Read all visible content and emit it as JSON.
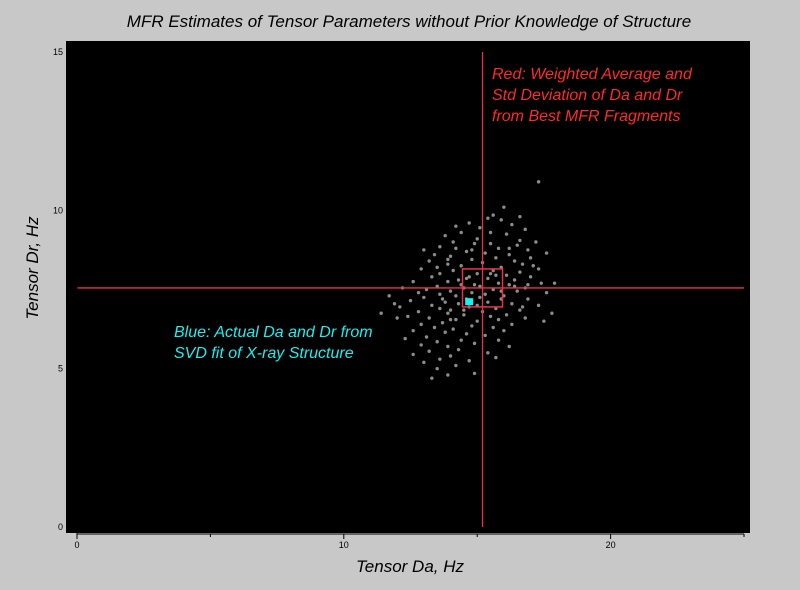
{
  "chart_data": {
    "type": "scatter",
    "title": "MFR Estimates of Tensor Parameters without Prior Knowledge of Structure",
    "xlabel": "Tensor Da, Hz",
    "ylabel": "Tensor Dr, Hz",
    "xlim": [
      0,
      25
    ],
    "ylim": [
      0,
      15
    ],
    "x_ticks": [
      0,
      10,
      20
    ],
    "y_ticks": [
      0,
      5,
      10,
      15
    ],
    "colors": {
      "background": "#c8c8c8",
      "plot_background": "#000000",
      "points": "#8c8c8c",
      "average": "#e8324a",
      "actual": "#19f0f0"
    },
    "annotations": {
      "red": [
        "Red: Weighted Average and",
        "Std Deviation of Da and Dr",
        "from Best MFR Fragments"
      ],
      "cyan": [
        "Blue: Actual Da and Dr from",
        "SVD fit of X-ray Structure"
      ]
    },
    "weighted_average": {
      "x": 15.2,
      "y": 7.55,
      "x_std": 0.75,
      "y_std": 0.6
    },
    "actual": {
      "x": 14.7,
      "y": 7.1
    },
    "series": [
      {
        "points": [
          [
            17.3,
            10.9
          ],
          [
            16.0,
            10.1
          ],
          [
            15.6,
            9.85
          ],
          [
            16.6,
            9.8
          ],
          [
            15.9,
            9.7
          ],
          [
            14.7,
            9.6
          ],
          [
            16.3,
            9.55
          ],
          [
            15.1,
            9.45
          ],
          [
            16.8,
            9.4
          ],
          [
            14.4,
            9.3
          ],
          [
            15.5,
            9.3
          ],
          [
            16.1,
            9.25
          ],
          [
            13.8,
            9.2
          ],
          [
            15.0,
            9.1
          ],
          [
            17.2,
            9.0
          ],
          [
            14.9,
            8.95
          ],
          [
            16.5,
            8.9
          ],
          [
            13.6,
            8.85
          ],
          [
            14.2,
            8.8
          ],
          [
            15.8,
            8.8
          ],
          [
            16.9,
            8.75
          ],
          [
            14.6,
            8.7
          ],
          [
            15.3,
            8.65
          ],
          [
            13.4,
            8.6
          ],
          [
            16.2,
            8.6
          ],
          [
            14.0,
            8.55
          ],
          [
            15.7,
            8.5
          ],
          [
            17.0,
            8.5
          ],
          [
            14.8,
            8.45
          ],
          [
            13.2,
            8.4
          ],
          [
            16.4,
            8.4
          ],
          [
            15.2,
            8.35
          ],
          [
            13.9,
            8.3
          ],
          [
            16.7,
            8.3
          ],
          [
            14.4,
            8.25
          ],
          [
            15.9,
            8.2
          ],
          [
            12.9,
            8.15
          ],
          [
            17.3,
            8.15
          ],
          [
            14.1,
            8.1
          ],
          [
            15.6,
            8.1
          ],
          [
            16.6,
            8.05
          ],
          [
            13.6,
            8.0
          ],
          [
            15.0,
            8.0
          ],
          [
            16.1,
            7.95
          ],
          [
            14.7,
            7.9
          ],
          [
            13.3,
            7.9
          ],
          [
            17.0,
            7.9
          ],
          [
            15.4,
            7.85
          ],
          [
            14.3,
            7.8
          ],
          [
            16.4,
            7.8
          ],
          [
            12.6,
            7.75
          ],
          [
            13.9,
            7.75
          ],
          [
            15.8,
            7.7
          ],
          [
            17.4,
            7.7
          ],
          [
            14.9,
            7.65
          ],
          [
            16.2,
            7.65
          ],
          [
            13.5,
            7.6
          ],
          [
            15.1,
            7.6
          ],
          [
            12.2,
            7.55
          ],
          [
            14.5,
            7.55
          ],
          [
            16.8,
            7.55
          ],
          [
            13.1,
            7.5
          ],
          [
            15.6,
            7.5
          ],
          [
            14.0,
            7.45
          ],
          [
            16.5,
            7.45
          ],
          [
            12.8,
            7.4
          ],
          [
            14.8,
            7.4
          ],
          [
            17.6,
            7.4
          ],
          [
            13.6,
            7.35
          ],
          [
            15.3,
            7.35
          ],
          [
            16.0,
            7.3
          ],
          [
            11.7,
            7.3
          ],
          [
            14.2,
            7.3
          ],
          [
            13.0,
            7.25
          ],
          [
            15.9,
            7.2
          ],
          [
            14.6,
            7.2
          ],
          [
            16.9,
            7.2
          ],
          [
            12.5,
            7.15
          ],
          [
            13.8,
            7.1
          ],
          [
            15.4,
            7.1
          ],
          [
            14.3,
            7.05
          ],
          [
            16.3,
            7.05
          ],
          [
            13.3,
            7.0
          ],
          [
            15.0,
            7.0
          ],
          [
            17.3,
            7.0
          ],
          [
            12.1,
            6.95
          ],
          [
            14.7,
            6.95
          ],
          [
            15.7,
            6.9
          ],
          [
            13.6,
            6.9
          ],
          [
            16.6,
            6.85
          ],
          [
            14.0,
            6.85
          ],
          [
            12.8,
            6.8
          ],
          [
            15.2,
            6.8
          ],
          [
            17.8,
            6.75
          ],
          [
            13.9,
            6.75
          ],
          [
            16.1,
            6.7
          ],
          [
            14.5,
            6.7
          ],
          [
            12.4,
            6.65
          ],
          [
            15.5,
            6.65
          ],
          [
            13.2,
            6.6
          ],
          [
            16.8,
            6.6
          ],
          [
            14.2,
            6.55
          ],
          [
            17.5,
            6.5
          ],
          [
            15.0,
            6.5
          ],
          [
            13.7,
            6.45
          ],
          [
            12.9,
            6.4
          ],
          [
            16.3,
            6.4
          ],
          [
            14.8,
            6.35
          ],
          [
            13.4,
            6.3
          ],
          [
            15.6,
            6.3
          ],
          [
            14.1,
            6.25
          ],
          [
            12.6,
            6.2
          ],
          [
            16.0,
            6.2
          ],
          [
            13.8,
            6.15
          ],
          [
            14.6,
            6.1
          ],
          [
            15.3,
            6.05
          ],
          [
            13.1,
            6.0
          ],
          [
            12.3,
            5.95
          ],
          [
            14.4,
            5.9
          ],
          [
            15.8,
            5.9
          ],
          [
            13.5,
            5.85
          ],
          [
            14.9,
            5.8
          ],
          [
            12.9,
            5.75
          ],
          [
            16.2,
            5.7
          ],
          [
            13.9,
            5.7
          ],
          [
            14.3,
            5.6
          ],
          [
            13.2,
            5.55
          ],
          [
            15.4,
            5.5
          ],
          [
            12.6,
            5.45
          ],
          [
            14.0,
            5.4
          ],
          [
            15.7,
            5.35
          ],
          [
            13.6,
            5.3
          ],
          [
            14.7,
            5.25
          ],
          [
            13.0,
            5.2
          ],
          [
            14.2,
            5.1
          ],
          [
            13.5,
            5.0
          ],
          [
            14.9,
            4.85
          ],
          [
            13.9,
            4.8
          ],
          [
            13.3,
            4.7
          ],
          [
            12.0,
            6.6
          ],
          [
            11.4,
            6.75
          ],
          [
            11.9,
            7.05
          ],
          [
            17.9,
            7.7
          ],
          [
            17.6,
            8.65
          ],
          [
            15.4,
            9.75
          ],
          [
            14.1,
            9.0
          ],
          [
            13.0,
            8.75
          ],
          [
            16.9,
            7.65
          ],
          [
            15.5,
            8.0
          ],
          [
            14.6,
            7.85
          ],
          [
            15.9,
            7.45
          ],
          [
            14.4,
            7.65
          ],
          [
            15.7,
            7.95
          ],
          [
            16.4,
            7.6
          ],
          [
            13.7,
            7.2
          ],
          [
            15.1,
            7.25
          ],
          [
            14.5,
            6.85
          ],
          [
            16.7,
            6.95
          ],
          [
            15.8,
            6.55
          ],
          [
            14.0,
            6.55
          ],
          [
            16.2,
            8.8
          ],
          [
            14.8,
            8.75
          ],
          [
            13.5,
            8.2
          ],
          [
            17.1,
            8.25
          ],
          [
            15.5,
            8.95
          ],
          [
            14.2,
            9.5
          ],
          [
            16.6,
            9.05
          ],
          [
            13.9,
            8.45
          ]
        ]
      }
    ]
  }
}
